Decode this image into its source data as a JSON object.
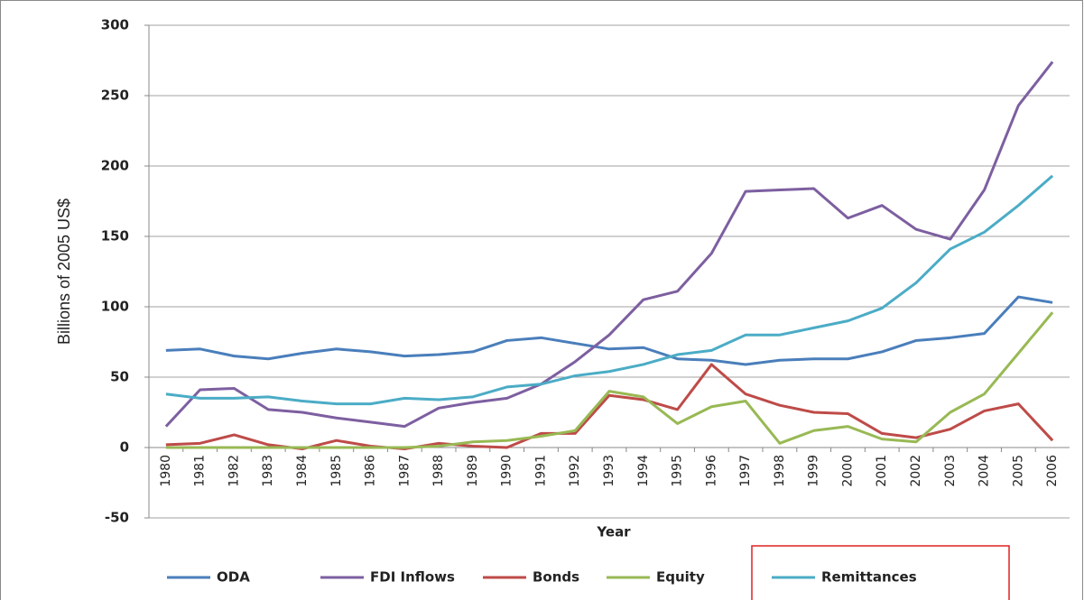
{
  "chart_data": {
    "type": "line",
    "x_label": "Year",
    "y_label": "Billions of 2005 US$",
    "categories": [
      "1980",
      "1981",
      "1982",
      "1983",
      "1984",
      "1985",
      "1986",
      "1987",
      "1988",
      "1989",
      "1990",
      "1991",
      "1992",
      "1993",
      "1994",
      "1995",
      "1996",
      "1997",
      "1998",
      "1999",
      "2000",
      "2001",
      "2002",
      "2003",
      "2004",
      "2005",
      "2006"
    ],
    "series": [
      {
        "name": "ODA",
        "color": "#4a7ebb",
        "values": [
          69,
          70,
          65,
          63,
          67,
          70,
          68,
          65,
          66,
          68,
          76,
          78,
          74,
          70,
          71,
          63,
          62,
          59,
          62,
          63,
          63,
          68,
          76,
          78,
          81,
          107,
          103
        ]
      },
      {
        "name": "FDI Inflows",
        "color": "#7d5fa0",
        "values": [
          15,
          41,
          42,
          27,
          25,
          21,
          18,
          15,
          28,
          32,
          35,
          45,
          61,
          80,
          105,
          111,
          138,
          182,
          183,
          184,
          163,
          172,
          155,
          148,
          183,
          243,
          274
        ]
      },
      {
        "name": "Bonds",
        "color": "#be4b48",
        "values": [
          2,
          3,
          9,
          2,
          -1,
          5,
          1,
          -1,
          3,
          1,
          0,
          10,
          10,
          37,
          34,
          27,
          59,
          38,
          30,
          25,
          24,
          10,
          7,
          13,
          26,
          31,
          5
        ]
      },
      {
        "name": "Equity",
        "color": "#98b954",
        "values": [
          0,
          0,
          0,
          0,
          0,
          0,
          0,
          0,
          1,
          4,
          5,
          8,
          12,
          40,
          36,
          17,
          29,
          33,
          3,
          12,
          15,
          6,
          4,
          25,
          38,
          67,
          96
        ]
      },
      {
        "name": "Remittances",
        "color": "#4bacc6",
        "values": [
          38,
          35,
          35,
          36,
          33,
          31,
          31,
          35,
          34,
          36,
          43,
          45,
          51,
          54,
          59,
          66,
          69,
          80,
          80,
          85,
          90,
          99,
          117,
          141,
          153,
          172,
          193
        ]
      }
    ],
    "ylim": [
      -50,
      300
    ],
    "yticks": [
      -50,
      0,
      50,
      100,
      150,
      200,
      250,
      300
    ],
    "grid": true,
    "legend": "bottom"
  }
}
